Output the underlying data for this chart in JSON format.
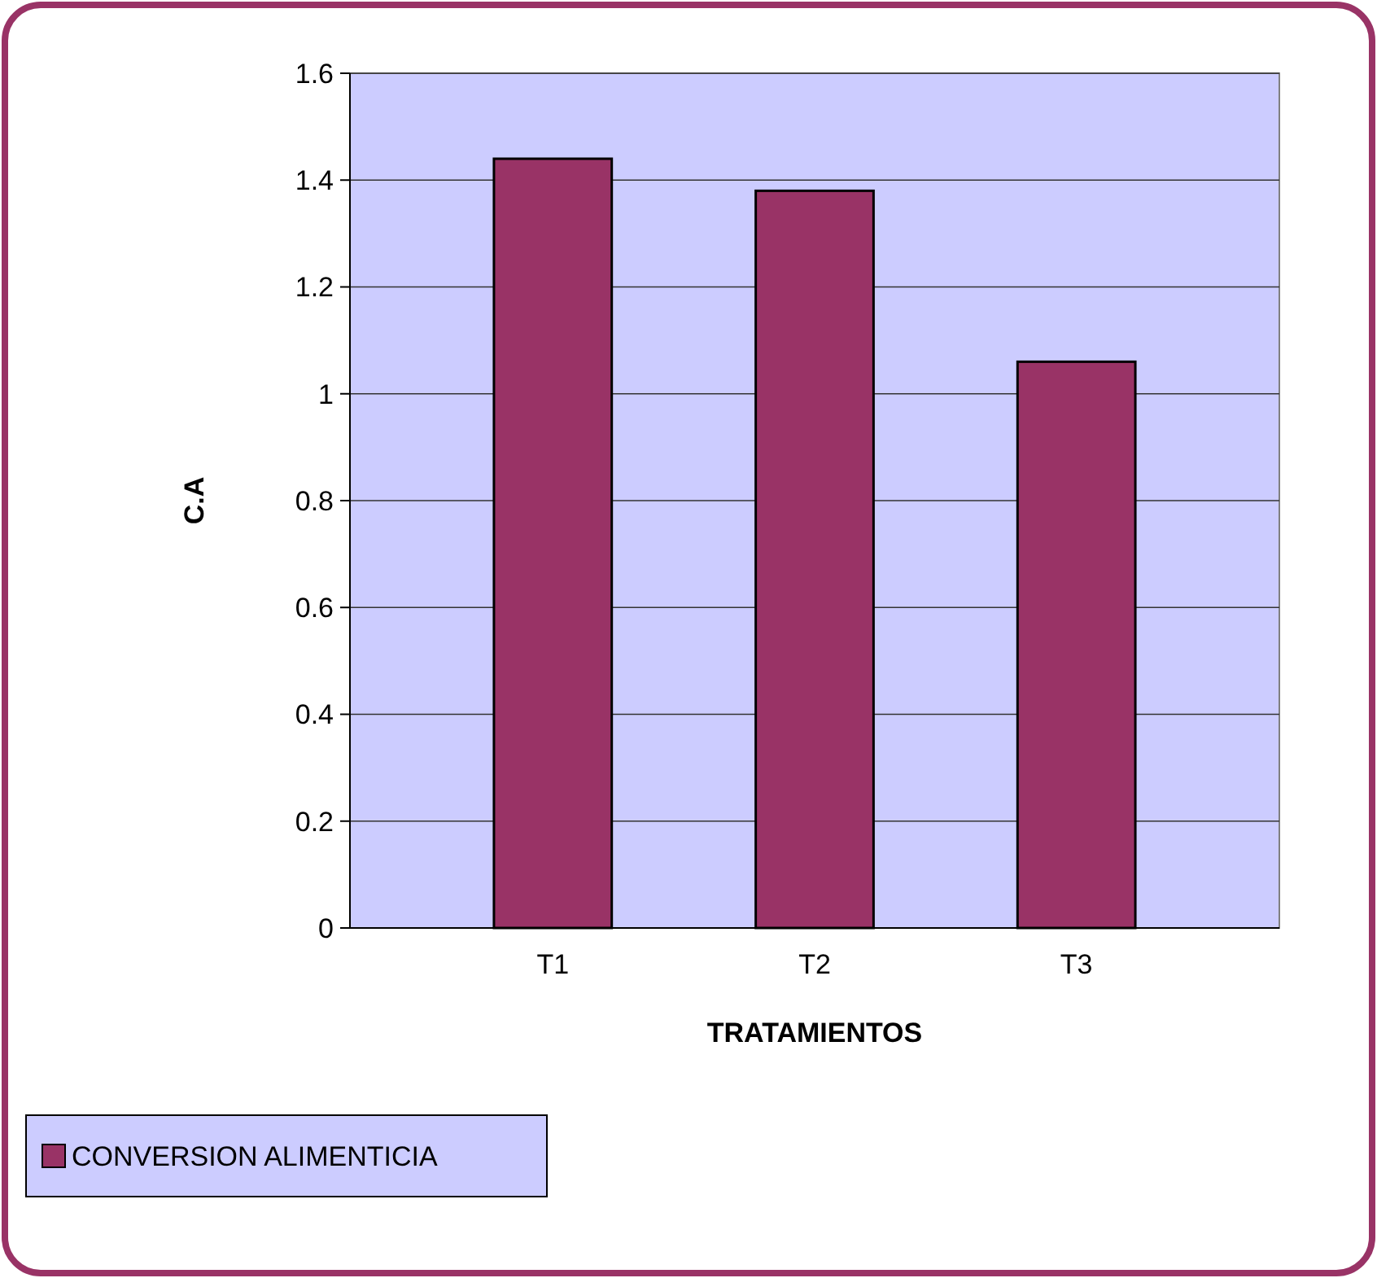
{
  "chart_data": {
    "type": "bar",
    "xlabel": "TRATAMIENTOS",
    "ylabel": "C.A",
    "categories": [
      "T1",
      "T2",
      "T3"
    ],
    "series": [
      {
        "name": "CONVERSION ALIMENTICIA",
        "color": "#993366",
        "values": [
          1.44,
          1.38,
          1.06
        ]
      }
    ],
    "ylim": [
      0,
      1.6
    ],
    "yticks": [
      0,
      0.2,
      0.4,
      0.6,
      0.8,
      1,
      1.2,
      1.4,
      1.6
    ],
    "grid": "y",
    "legend": "bottom left"
  }
}
